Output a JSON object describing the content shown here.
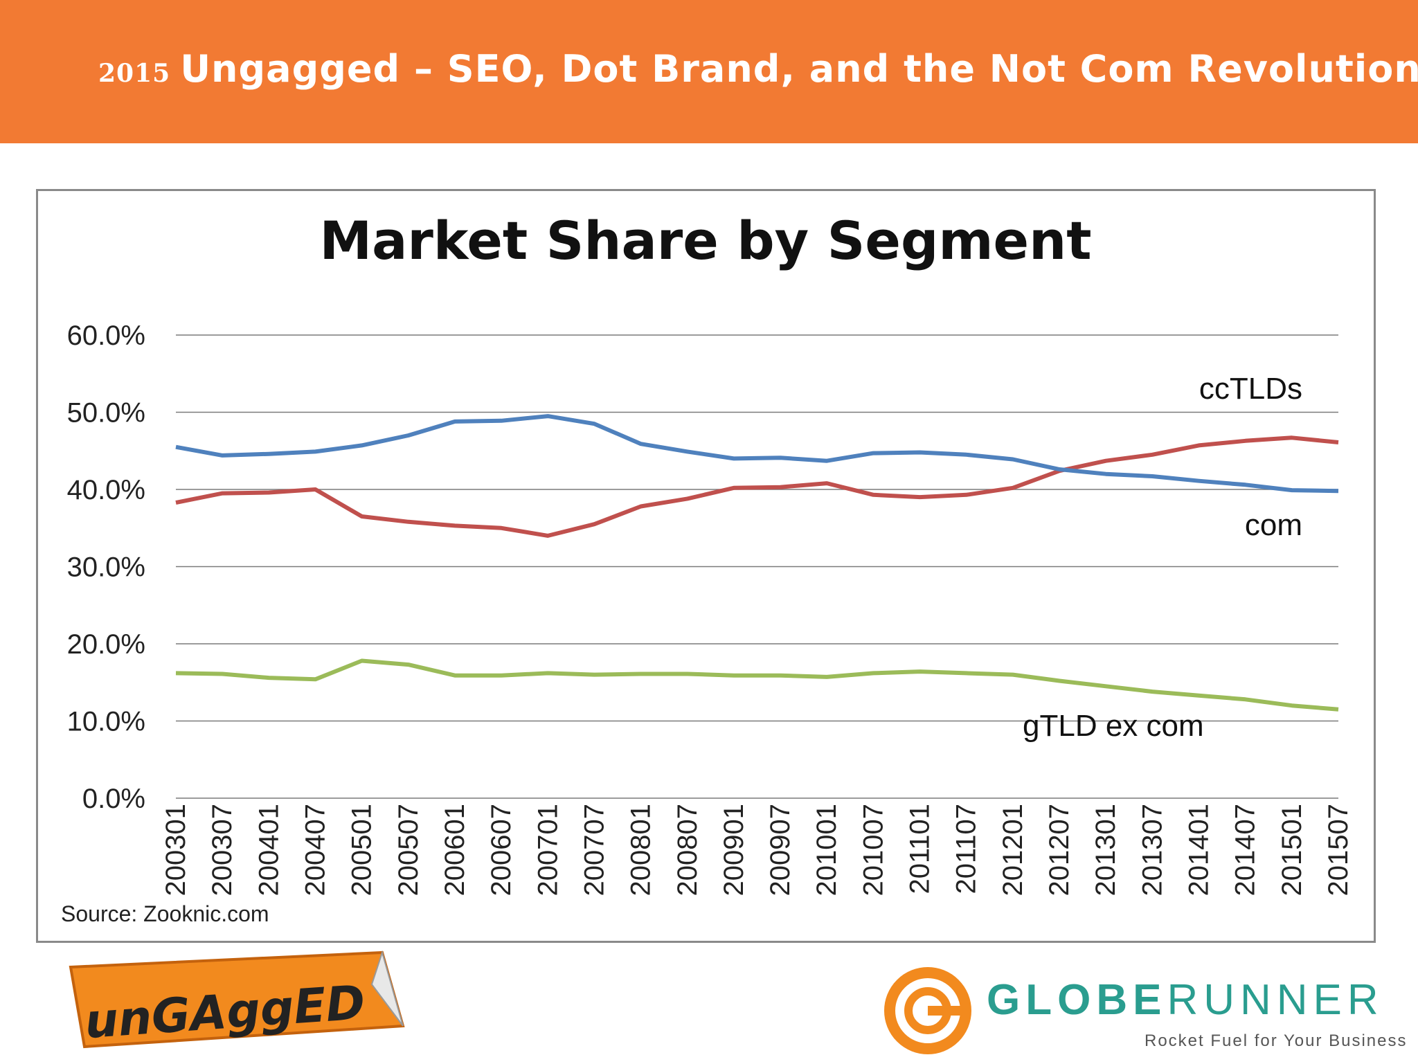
{
  "header": {
    "year": "2015",
    "title": "Ungagged – SEO, Dot Brand, and the Not Com Revolution",
    "background": "#f27a33"
  },
  "chart_data": {
    "type": "line",
    "title": "Market Share by Segment",
    "source": "Source: Zooknic.com",
    "ylim": [
      0,
      60
    ],
    "yticks": [
      "0.0%",
      "10.0%",
      "20.0%",
      "30.0%",
      "40.0%",
      "50.0%",
      "60.0%"
    ],
    "grid": true,
    "legend": "inline labels",
    "x_ticks": [
      "200301",
      "200307",
      "200401",
      "200407",
      "200501",
      "200507",
      "200601",
      "200607",
      "200701",
      "200707",
      "200801",
      "200807",
      "200901",
      "200907",
      "201001",
      "201007",
      "201101",
      "201107",
      "201201",
      "201207",
      "201301",
      "201307",
      "201401",
      "201407",
      "201501",
      "201507"
    ],
    "series": [
      {
        "name": "ccTLDs",
        "color": "#c0504d",
        "values": [
          38.3,
          39.5,
          39.6,
          40.0,
          36.5,
          35.8,
          35.3,
          35.0,
          34.0,
          35.5,
          37.8,
          38.8,
          40.2,
          40.3,
          40.8,
          39.3,
          39.0,
          39.3,
          40.2,
          42.4,
          43.7,
          44.5,
          45.7,
          46.3,
          46.7,
          46.1
        ]
      },
      {
        "name": "com",
        "color": "#4f81bd",
        "values": [
          45.5,
          44.4,
          44.6,
          44.9,
          45.7,
          47.0,
          48.8,
          48.9,
          49.5,
          48.5,
          45.9,
          44.9,
          44.0,
          44.1,
          43.7,
          44.7,
          44.8,
          44.5,
          43.9,
          42.6,
          42.0,
          41.7,
          41.1,
          40.6,
          39.9,
          39.8
        ]
      },
      {
        "name": "gTLD ex com",
        "color": "#9bbb59",
        "values": [
          16.2,
          16.1,
          15.6,
          15.4,
          17.8,
          17.3,
          15.9,
          15.9,
          16.2,
          16.0,
          16.1,
          16.1,
          15.9,
          15.9,
          15.7,
          16.2,
          16.4,
          16.2,
          16.0,
          15.2,
          14.5,
          13.8,
          13.3,
          12.8,
          12.0,
          11.5
        ]
      }
    ]
  },
  "logos": {
    "ungagged": "unGAggED",
    "globerunner_name": "GLOBERUNNER",
    "globerunner_tagline": "Rocket Fuel for Your Business"
  }
}
